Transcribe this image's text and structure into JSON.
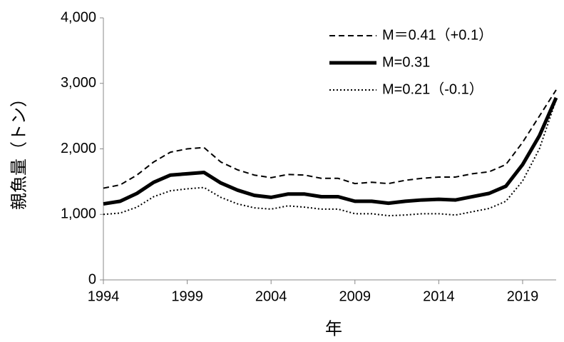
{
  "chart_data": {
    "type": "line",
    "x_label": "年",
    "y_label": "親魚量（トン）",
    "x": [
      1994,
      1995,
      1996,
      1997,
      1998,
      1999,
      2000,
      2001,
      2002,
      2003,
      2004,
      2005,
      2006,
      2007,
      2008,
      2009,
      2010,
      2011,
      2012,
      2013,
      2014,
      2015,
      2016,
      2017,
      2018,
      2019,
      2020,
      2021
    ],
    "series": [
      {
        "name": "M＝0.41（+0.1）",
        "color": "#000000",
        "dash": "8,5",
        "width": 2,
        "values": [
          1400,
          1450,
          1600,
          1800,
          1950,
          2000,
          2020,
          1800,
          1680,
          1600,
          1560,
          1610,
          1600,
          1550,
          1550,
          1470,
          1490,
          1470,
          1520,
          1550,
          1570,
          1570,
          1620,
          1650,
          1760,
          2100,
          2500,
          2900
        ]
      },
      {
        "name": "M=0.31",
        "color": "#000000",
        "dash": "none",
        "width": 5,
        "values": [
          1160,
          1200,
          1320,
          1490,
          1600,
          1620,
          1640,
          1480,
          1370,
          1290,
          1260,
          1310,
          1310,
          1270,
          1270,
          1200,
          1200,
          1170,
          1200,
          1220,
          1230,
          1220,
          1270,
          1320,
          1430,
          1760,
          2200,
          2780
        ]
      },
      {
        "name": "M=0.21（-0.1）",
        "color": "#000000",
        "dash": "2,3",
        "width": 2,
        "values": [
          1000,
          1020,
          1110,
          1270,
          1360,
          1390,
          1410,
          1260,
          1160,
          1100,
          1080,
          1130,
          1110,
          1080,
          1080,
          1010,
          1010,
          980,
          990,
          1010,
          1010,
          990,
          1040,
          1090,
          1200,
          1510,
          2000,
          2750
        ]
      }
    ],
    "xlim": [
      1994,
      2021
    ],
    "xticks": [
      1994,
      1999,
      2004,
      2009,
      2014,
      2019
    ],
    "ylim": [
      0,
      4000
    ],
    "yticks": [
      0,
      {
        "value": 1000,
        "label": "1,000"
      },
      {
        "value": 2000,
        "label": "2,000"
      },
      {
        "value": 3000,
        "label": "3,000"
      },
      {
        "value": 4000,
        "label": "4,000"
      }
    ]
  }
}
